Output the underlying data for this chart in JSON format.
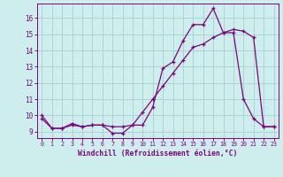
{
  "title": "",
  "xlabel": "Windchill (Refroidissement éolien,°C)",
  "ylabel": "",
  "background_color": "#ceeeed",
  "grid_color": "#aad4d3",
  "line_color": "#800080",
  "xlim": [
    -0.5,
    23.5
  ],
  "ylim": [
    8.6,
    16.9
  ],
  "yticks": [
    9,
    10,
    11,
    12,
    13,
    14,
    15,
    16
  ],
  "xticks": [
    0,
    1,
    2,
    3,
    4,
    5,
    6,
    7,
    8,
    9,
    10,
    11,
    12,
    13,
    14,
    15,
    16,
    17,
    18,
    19,
    20,
    21,
    22,
    23
  ],
  "series1_x": [
    0,
    1,
    2,
    3,
    4,
    5,
    6,
    7,
    8,
    9,
    10,
    11,
    12,
    13,
    14,
    15,
    16,
    17,
    18,
    19,
    20,
    21,
    22,
    23
  ],
  "series1_y": [
    10.0,
    9.2,
    9.2,
    9.5,
    9.3,
    9.4,
    9.4,
    8.9,
    8.9,
    9.4,
    9.4,
    10.5,
    12.9,
    13.3,
    14.6,
    15.6,
    15.6,
    16.6,
    15.1,
    15.1,
    11.0,
    9.8,
    9.3,
    9.3
  ],
  "series2_x": [
    0,
    1,
    2,
    3,
    4,
    5,
    6,
    7,
    8,
    9,
    10,
    11,
    12,
    13,
    14,
    15,
    16,
    17,
    18,
    19,
    20,
    21,
    22,
    23
  ],
  "series2_y": [
    9.8,
    9.2,
    9.2,
    9.4,
    9.3,
    9.4,
    9.4,
    9.3,
    9.3,
    9.4,
    10.2,
    11.0,
    11.8,
    12.6,
    13.4,
    14.2,
    14.4,
    14.8,
    15.1,
    15.3,
    15.2,
    14.8,
    9.3,
    9.3
  ]
}
